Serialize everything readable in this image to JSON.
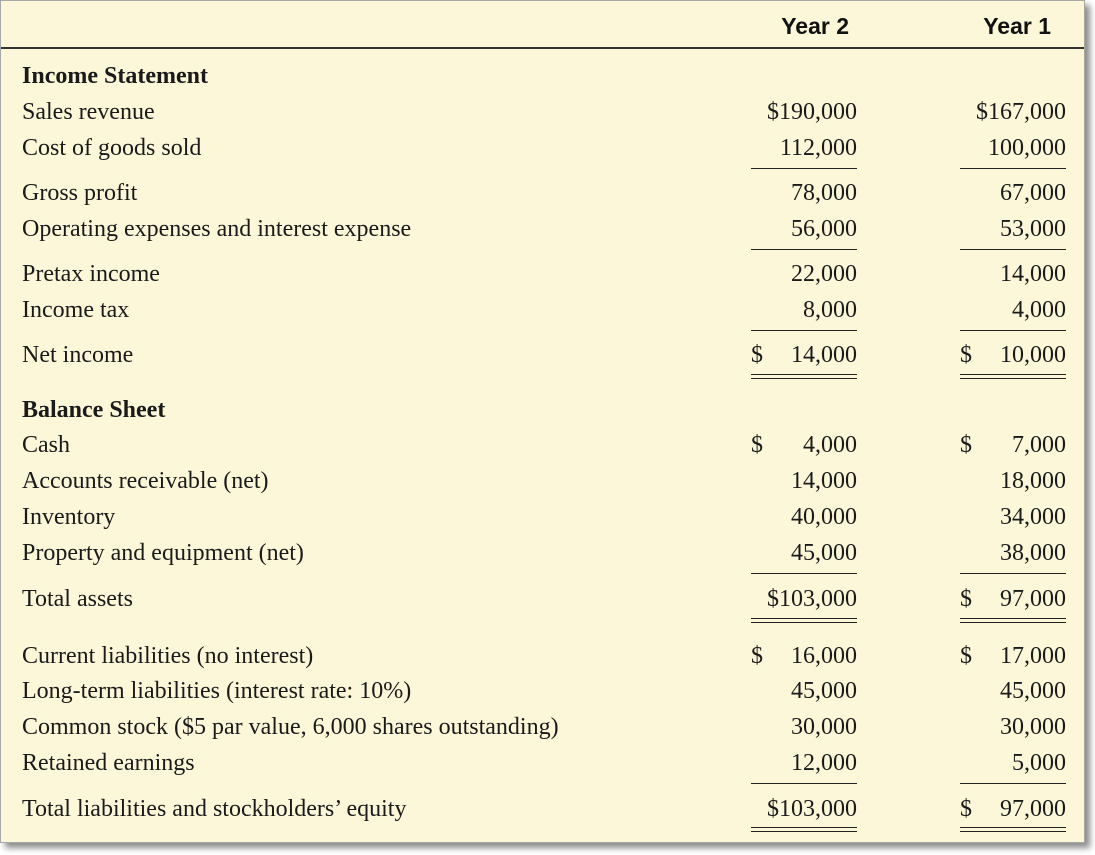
{
  "columns": {
    "year2": "Year 2",
    "year1": "Year 1"
  },
  "income_statement": {
    "heading": "Income Statement",
    "rows": [
      {
        "label": "Sales revenue",
        "y2": "$190,000",
        "y1": "$167,000"
      },
      {
        "label": "Cost of goods sold",
        "y2": "112,000",
        "y1": "100,000"
      },
      {
        "label": "Gross profit",
        "y2": "78,000",
        "y1": "67,000"
      },
      {
        "label": "Operating expenses and interest expense",
        "y2": "56,000",
        "y1": "53,000"
      },
      {
        "label": "Pretax income",
        "y2": "22,000",
        "y1": "14,000"
      },
      {
        "label": "Income tax",
        "y2": "8,000",
        "y1": "4,000"
      },
      {
        "label": "Net income",
        "y2_cur": "$",
        "y2": "14,000",
        "y1_cur": "$",
        "y1": "10,000"
      }
    ]
  },
  "balance_sheet": {
    "heading": "Balance Sheet",
    "rows": [
      {
        "label": "Cash",
        "y2_cur": "$",
        "y2": "4,000",
        "y1_cur": "$",
        "y1": "7,000"
      },
      {
        "label": "Accounts receivable (net)",
        "y2": "14,000",
        "y1": "18,000"
      },
      {
        "label": "Inventory",
        "y2": "40,000",
        "y1": "34,000"
      },
      {
        "label": "Property and equipment (net)",
        "y2": "45,000",
        "y1": "38,000"
      },
      {
        "label": "Total assets",
        "y2": "$103,000",
        "y1_cur": "$",
        "y1": "97,000"
      },
      {
        "label": "Current liabilities (no interest)",
        "y2_cur": "$",
        "y2": "16,000",
        "y1_cur": "$",
        "y1": "17,000"
      },
      {
        "label": "Long-term liabilities (interest rate: 10%)",
        "y2": "45,000",
        "y1": "45,000"
      },
      {
        "label": "Common stock ($5 par value, 6,000 shares outstanding)",
        "y2": "30,000",
        "y1": "30,000"
      },
      {
        "label": "Retained earnings",
        "y2": "12,000",
        "y1": "5,000"
      },
      {
        "label": "Total liabilities and stockholders’ equity",
        "y2": "$103,000",
        "y1_cur": "$",
        "y1": "97,000"
      }
    ]
  }
}
